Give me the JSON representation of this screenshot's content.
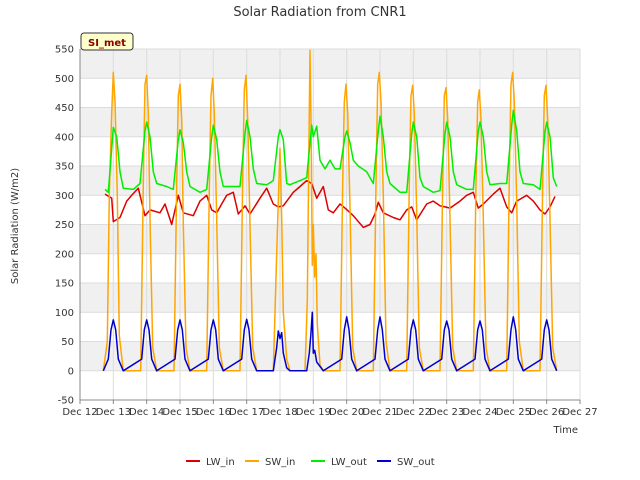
{
  "chart_data": {
    "type": "line",
    "title": "Solar Radiation from CNR1",
    "xlabel": "Time",
    "ylabel": "Solar Radiation (W/m2)",
    "badge": "SI_met",
    "xlim": [
      12,
      27
    ],
    "ylim": [
      -50,
      550
    ],
    "x_ticks": [
      {
        "v": 12,
        "label": "Dec 12"
      },
      {
        "v": 13,
        "label": "Dec 13"
      },
      {
        "v": 14,
        "label": "Dec 14"
      },
      {
        "v": 15,
        "label": "Dec 15"
      },
      {
        "v": 16,
        "label": "Dec 16"
      },
      {
        "v": 17,
        "label": "Dec 17"
      },
      {
        "v": 18,
        "label": "Dec 18"
      },
      {
        "v": 19,
        "label": "Dec 19"
      },
      {
        "v": 20,
        "label": "Dec 20"
      },
      {
        "v": 21,
        "label": "Dec 21"
      },
      {
        "v": 22,
        "label": "Dec 22"
      },
      {
        "v": 23,
        "label": "Dec 23"
      },
      {
        "v": 24,
        "label": "Dec 24"
      },
      {
        "v": 25,
        "label": "Dec 25"
      },
      {
        "v": 26,
        "label": "Dec 26"
      },
      {
        "v": 27,
        "label": "Dec 27"
      }
    ],
    "y_ticks": [
      -50,
      0,
      50,
      100,
      150,
      200,
      250,
      300,
      350,
      400,
      450,
      500,
      550
    ],
    "grid": true,
    "legend_position": "bottom",
    "series": [
      {
        "name": "LW_in",
        "color": "#dd0000",
        "x": [
          12.75,
          12.95,
          13.0,
          13.2,
          13.4,
          13.55,
          13.75,
          13.95,
          14.1,
          14.4,
          14.55,
          14.75,
          14.95,
          15.1,
          15.4,
          15.6,
          15.8,
          15.95,
          16.1,
          16.4,
          16.6,
          16.75,
          16.95,
          17.1,
          17.4,
          17.6,
          17.8,
          17.95,
          18.1,
          18.4,
          18.6,
          18.8,
          18.95,
          19.1,
          19.3,
          19.45,
          19.6,
          19.8,
          19.95,
          20.2,
          20.5,
          20.7,
          20.85,
          20.95,
          21.1,
          21.4,
          21.6,
          21.8,
          21.95,
          22.1,
          22.4,
          22.6,
          22.8,
          22.95,
          23.1,
          23.4,
          23.6,
          23.8,
          23.95,
          24.1,
          24.4,
          24.6,
          24.8,
          24.95,
          25.1,
          25.4,
          25.6,
          25.8,
          25.95,
          26.1,
          26.25
        ],
        "y": [
          302,
          295,
          255,
          262,
          290,
          300,
          312,
          265,
          275,
          270,
          285,
          250,
          300,
          270,
          265,
          290,
          300,
          275,
          270,
          300,
          305,
          268,
          282,
          268,
          295,
          312,
          285,
          280,
          282,
          305,
          315,
          325,
          320,
          295,
          315,
          275,
          270,
          285,
          278,
          265,
          245,
          250,
          268,
          288,
          270,
          262,
          258,
          275,
          280,
          258,
          285,
          290,
          282,
          280,
          278,
          290,
          300,
          305,
          278,
          285,
          302,
          312,
          280,
          270,
          290,
          300,
          290,
          275,
          268,
          280,
          298
        ]
      },
      {
        "name": "SW_in",
        "color": "#ffa500",
        "x": [
          12.7,
          12.82,
          12.88,
          12.95,
          13.0,
          13.05,
          13.12,
          13.18,
          13.3,
          13.82,
          13.9,
          13.95,
          14.0,
          14.05,
          14.1,
          14.18,
          14.3,
          14.82,
          14.9,
          14.95,
          15.0,
          15.05,
          15.1,
          15.18,
          15.3,
          15.8,
          15.88,
          15.93,
          15.98,
          16.03,
          16.1,
          16.18,
          16.3,
          16.8,
          16.88,
          16.93,
          16.98,
          17.03,
          17.1,
          17.18,
          17.3,
          17.8,
          17.9,
          17.95,
          18.0,
          18.05,
          18.1,
          18.2,
          18.3,
          18.75,
          18.82,
          18.86,
          18.9,
          18.93,
          18.97,
          19.0,
          19.04,
          19.08,
          19.12,
          19.2,
          19.3,
          19.8,
          19.88,
          19.93,
          19.98,
          20.03,
          20.1,
          20.18,
          20.3,
          20.8,
          20.88,
          20.93,
          20.98,
          21.03,
          21.1,
          21.18,
          21.3,
          21.8,
          21.88,
          21.93,
          21.98,
          22.03,
          22.1,
          22.18,
          22.3,
          22.8,
          22.88,
          22.93,
          22.98,
          23.03,
          23.1,
          23.18,
          23.3,
          23.8,
          23.88,
          23.93,
          23.98,
          24.03,
          24.1,
          24.18,
          24.3,
          24.8,
          24.88,
          24.93,
          24.98,
          25.03,
          25.1,
          25.18,
          25.3,
          25.8,
          25.88,
          25.93,
          25.98,
          26.03,
          26.1,
          26.18,
          26.3
        ],
        "y": [
          0,
          50,
          300,
          440,
          510,
          460,
          300,
          60,
          0,
          0,
          320,
          490,
          505,
          440,
          260,
          40,
          0,
          0,
          320,
          470,
          490,
          430,
          250,
          40,
          0,
          0,
          310,
          470,
          500,
          440,
          260,
          40,
          0,
          0,
          330,
          480,
          505,
          430,
          250,
          40,
          0,
          0,
          200,
          290,
          380,
          260,
          100,
          20,
          0,
          0,
          120,
          350,
          548,
          430,
          180,
          250,
          160,
          200,
          80,
          10,
          0,
          0,
          320,
          460,
          490,
          440,
          280,
          40,
          0,
          0,
          320,
          490,
          510,
          460,
          300,
          50,
          0,
          0,
          320,
          470,
          488,
          440,
          270,
          40,
          0,
          0,
          320,
          470,
          484,
          430,
          260,
          40,
          0,
          0,
          320,
          460,
          480,
          430,
          260,
          40,
          0,
          0,
          330,
          490,
          510,
          460,
          290,
          50,
          0,
          0,
          320,
          470,
          488,
          430,
          260,
          40,
          0
        ]
      },
      {
        "name": "LW_out",
        "color": "#00ee00",
        "x": [
          12.75,
          12.85,
          12.95,
          13.0,
          13.1,
          13.2,
          13.3,
          13.6,
          13.8,
          13.95,
          14.0,
          14.1,
          14.2,
          14.3,
          14.6,
          14.8,
          14.95,
          15.0,
          15.1,
          15.2,
          15.3,
          15.6,
          15.8,
          15.95,
          16.0,
          16.1,
          16.2,
          16.3,
          16.6,
          16.8,
          16.95,
          17.0,
          17.1,
          17.2,
          17.3,
          17.6,
          17.8,
          17.95,
          18.0,
          18.1,
          18.2,
          18.3,
          18.6,
          18.8,
          18.9,
          18.95,
          19.0,
          19.1,
          19.2,
          19.35,
          19.5,
          19.65,
          19.8,
          19.95,
          20.0,
          20.1,
          20.2,
          20.35,
          20.6,
          20.8,
          20.95,
          21.0,
          21.1,
          21.2,
          21.3,
          21.6,
          21.8,
          21.95,
          22.0,
          22.1,
          22.2,
          22.3,
          22.6,
          22.8,
          22.95,
          23.0,
          23.1,
          23.2,
          23.3,
          23.6,
          23.8,
          23.95,
          24.0,
          24.1,
          24.2,
          24.3,
          24.6,
          24.8,
          24.95,
          25.0,
          25.1,
          25.2,
          25.3,
          25.6,
          25.8,
          25.95,
          26.0,
          26.1,
          26.2,
          26.3
        ],
        "y": [
          310,
          305,
          380,
          416,
          400,
          340,
          312,
          310,
          320,
          410,
          425,
          400,
          340,
          320,
          315,
          310,
          395,
          412,
          390,
          340,
          315,
          305,
          310,
          400,
          420,
          395,
          340,
          315,
          315,
          315,
          405,
          428,
          400,
          345,
          320,
          318,
          325,
          400,
          412,
          395,
          320,
          318,
          325,
          330,
          390,
          420,
          400,
          418,
          360,
          345,
          360,
          345,
          345,
          400,
          410,
          390,
          360,
          350,
          340,
          320,
          410,
          435,
          400,
          340,
          320,
          305,
          305,
          405,
          425,
          400,
          330,
          315,
          305,
          308,
          405,
          425,
          400,
          340,
          318,
          310,
          310,
          410,
          425,
          400,
          340,
          318,
          320,
          320,
          420,
          445,
          410,
          340,
          320,
          318,
          310,
          408,
          425,
          400,
          330,
          315
        ]
      },
      {
        "name": "SW_out",
        "color": "#0000cc",
        "x": [
          12.7,
          12.85,
          12.93,
          13.0,
          13.07,
          13.15,
          13.3,
          13.85,
          13.93,
          14.0,
          14.07,
          14.15,
          14.3,
          14.85,
          14.93,
          15.0,
          15.07,
          15.15,
          15.3,
          15.85,
          15.93,
          16.0,
          16.07,
          16.15,
          16.3,
          16.85,
          16.93,
          17.0,
          17.07,
          17.15,
          17.3,
          17.8,
          17.9,
          17.95,
          18.0,
          18.05,
          18.1,
          18.2,
          18.3,
          18.8,
          18.88,
          18.93,
          18.97,
          19.0,
          19.04,
          19.1,
          19.3,
          19.85,
          19.93,
          20.0,
          20.07,
          20.15,
          20.3,
          20.85,
          20.93,
          21.0,
          21.07,
          21.15,
          21.3,
          21.85,
          21.93,
          22.0,
          22.07,
          22.15,
          22.3,
          22.85,
          22.93,
          23.0,
          23.07,
          23.15,
          23.3,
          23.85,
          23.93,
          24.0,
          24.07,
          24.15,
          24.3,
          24.85,
          24.93,
          25.0,
          25.07,
          25.15,
          25.3,
          25.85,
          25.93,
          26.0,
          26.07,
          26.15,
          26.3
        ],
        "y": [
          0,
          20,
          70,
          87,
          70,
          20,
          0,
          20,
          70,
          87,
          70,
          20,
          0,
          20,
          70,
          87,
          70,
          20,
          0,
          20,
          70,
          87,
          70,
          20,
          0,
          20,
          70,
          88,
          70,
          20,
          0,
          0,
          40,
          68,
          55,
          65,
          30,
          5,
          0,
          0,
          30,
          65,
          100,
          30,
          35,
          15,
          0,
          20,
          70,
          92,
          70,
          20,
          0,
          20,
          70,
          92,
          70,
          20,
          0,
          20,
          70,
          87,
          70,
          20,
          0,
          20,
          70,
          85,
          70,
          20,
          0,
          20,
          70,
          85,
          70,
          20,
          0,
          20,
          70,
          92,
          70,
          20,
          0,
          20,
          70,
          87,
          70,
          20,
          0
        ]
      }
    ]
  }
}
